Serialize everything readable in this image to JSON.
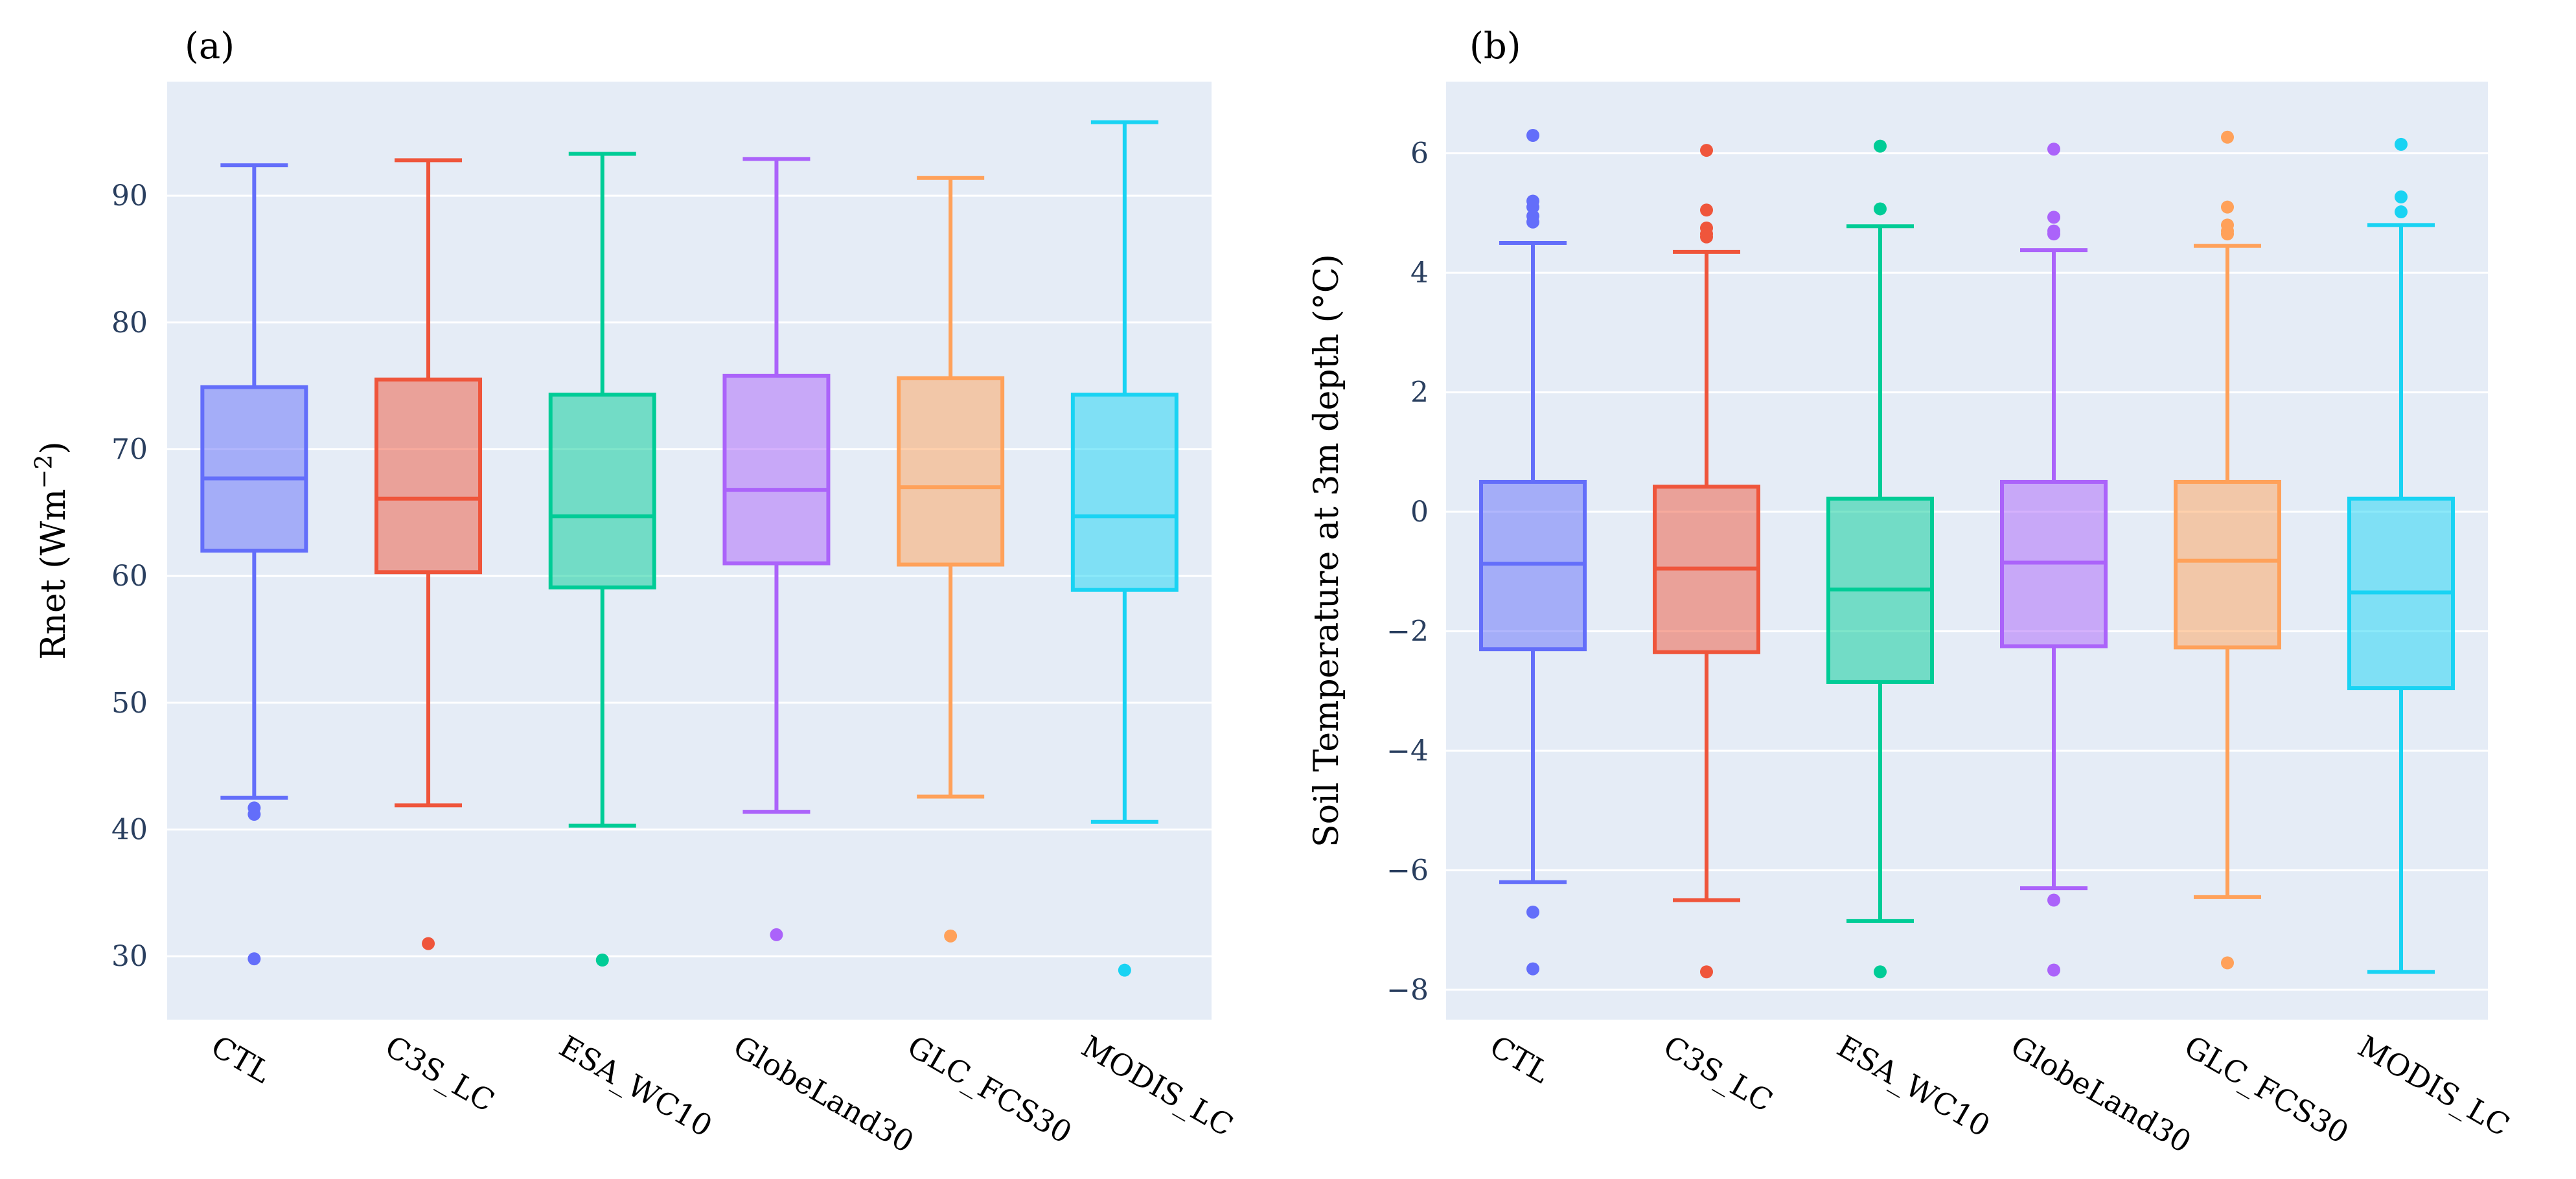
{
  "chart_data": [
    {
      "type": "box",
      "panel_label": "(a)",
      "xlabel": "",
      "ylabel": "Rnet (Wm",
      "ylabel_sup": "−2",
      "ylabel_close": ")",
      "ylim": [
        25,
        99
      ],
      "yticks": [
        30,
        40,
        50,
        60,
        70,
        80,
        90
      ],
      "categories": [
        "CTL",
        "C3S_LC",
        "ESA_WC10",
        "GlobeLand30",
        "GLC_FCS30",
        "MODIS_LC"
      ],
      "colors": [
        "#636EFA",
        "#EF553B",
        "#00CC96",
        "#AB63FA",
        "#FFA15A",
        "#19D3F3"
      ],
      "series": [
        {
          "name": "CTL",
          "q1": 62,
          "median": 67.7,
          "q3": 74.9,
          "whisker_low": 42.5,
          "whisker_high": 92.4,
          "outliers": [
            41.7,
            41.2,
            29.8
          ]
        },
        {
          "name": "C3S_LC",
          "q1": 60.3,
          "median": 66.1,
          "q3": 75.5,
          "whisker_low": 41.9,
          "whisker_high": 92.8,
          "outliers": [
            31
          ]
        },
        {
          "name": "ESA_WC10",
          "q1": 59.1,
          "median": 64.7,
          "q3": 74.3,
          "whisker_low": 40.3,
          "whisker_high": 93.3,
          "outliers": [
            29.7
          ]
        },
        {
          "name": "GlobeLand30",
          "q1": 61,
          "median": 66.8,
          "q3": 75.8,
          "whisker_low": 41.4,
          "whisker_high": 92.9,
          "outliers": [
            31.7
          ]
        },
        {
          "name": "GLC_FCS30",
          "q1": 60.9,
          "median": 67,
          "q3": 75.6,
          "whisker_low": 42.6,
          "whisker_high": 91.4,
          "outliers": [
            31.6
          ]
        },
        {
          "name": "MODIS_LC",
          "q1": 58.9,
          "median": 64.7,
          "q3": 74.3,
          "whisker_low": 40.6,
          "whisker_high": 95.8,
          "outliers": [
            28.9
          ]
        }
      ]
    },
    {
      "type": "box",
      "panel_label": "(b)",
      "xlabel": "",
      "ylabel": "Soil Temperature at 3m depth (",
      "ylabel_deg": "°C",
      "ylabel_close": ")",
      "ylim": [
        -8.5,
        7.2
      ],
      "yticks": [
        -8,
        -6,
        -4,
        -2,
        0,
        2,
        4,
        6
      ],
      "categories": [
        "CTL",
        "C3S_LC",
        "ESA_WC10",
        "GlobeLand30",
        "GLC_FCS30",
        "MODIS_LC"
      ],
      "colors": [
        "#636EFA",
        "#EF553B",
        "#00CC96",
        "#AB63FA",
        "#FFA15A",
        "#19D3F3"
      ],
      "series": [
        {
          "name": "CTL",
          "q1": -2.3,
          "median": -0.87,
          "q3": 0.5,
          "whisker_low": -6.2,
          "whisker_high": 4.5,
          "outliers": [
            6.3,
            5.2,
            5.1,
            4.95,
            4.85,
            -6.7,
            -7.65
          ]
        },
        {
          "name": "C3S_LC",
          "q1": -2.35,
          "median": -0.95,
          "q3": 0.42,
          "whisker_low": -6.5,
          "whisker_high": 4.35,
          "outliers": [
            6.05,
            5.05,
            4.75,
            4.65,
            4.6,
            -7.7
          ]
        },
        {
          "name": "ESA_WC10",
          "q1": -2.85,
          "median": -1.3,
          "q3": 0.22,
          "whisker_low": -6.85,
          "whisker_high": 4.78,
          "outliers": [
            6.12,
            5.07,
            -7.7
          ]
        },
        {
          "name": "GlobeLand30",
          "q1": -2.25,
          "median": -0.85,
          "q3": 0.5,
          "whisker_low": -6.3,
          "whisker_high": 4.38,
          "outliers": [
            6.07,
            4.93,
            4.7,
            4.65,
            -6.5,
            -7.67
          ]
        },
        {
          "name": "GLC_FCS30",
          "q1": -2.27,
          "median": -0.82,
          "q3": 0.5,
          "whisker_low": -6.45,
          "whisker_high": 4.45,
          "outliers": [
            6.27,
            5.1,
            4.8,
            4.7,
            4.65,
            -7.55
          ]
        },
        {
          "name": "MODIS_LC",
          "q1": -2.95,
          "median": -1.35,
          "q3": 0.22,
          "whisker_low": -7.7,
          "whisker_high": 4.8,
          "outliers": [
            6.15,
            5.27,
            5.02
          ]
        }
      ]
    }
  ]
}
